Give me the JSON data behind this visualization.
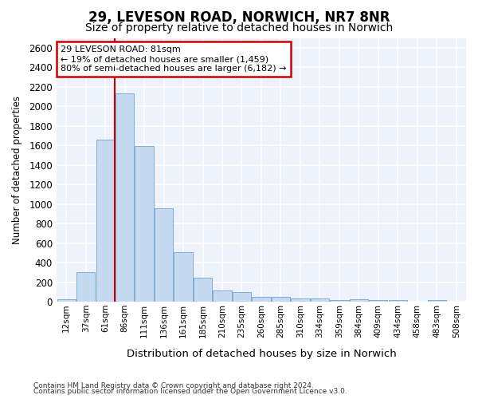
{
  "title1": "29, LEVESON ROAD, NORWICH, NR7 8NR",
  "title2": "Size of property relative to detached houses in Norwich",
  "xlabel": "Distribution of detached houses by size in Norwich",
  "ylabel": "Number of detached properties",
  "footer1": "Contains HM Land Registry data © Crown copyright and database right 2024.",
  "footer2": "Contains public sector information licensed under the Open Government Licence v3.0.",
  "annotation_title": "29 LEVESON ROAD: 81sqm",
  "annotation_line2": "← 19% of detached houses are smaller (1,459)",
  "annotation_line3": "80% of semi-detached houses are larger (6,182) →",
  "bar_color": "#c5d9f1",
  "bar_edge_color": "#7eadd4",
  "vline_color": "#cc0000",
  "vline_x": 3,
  "categories": [
    "12sqm",
    "37sqm",
    "61sqm",
    "86sqm",
    "111sqm",
    "136sqm",
    "161sqm",
    "185sqm",
    "210sqm",
    "235sqm",
    "260sqm",
    "285sqm",
    "310sqm",
    "334sqm",
    "359sqm",
    "384sqm",
    "409sqm",
    "434sqm",
    "458sqm",
    "483sqm",
    "508sqm"
  ],
  "values": [
    25,
    300,
    1660,
    2130,
    1590,
    960,
    505,
    250,
    120,
    100,
    50,
    50,
    35,
    35,
    20,
    25,
    20,
    15,
    5,
    20,
    5
  ],
  "ylim": [
    0,
    2700
  ],
  "yticks": [
    0,
    200,
    400,
    600,
    800,
    1000,
    1200,
    1400,
    1600,
    1800,
    2000,
    2200,
    2400,
    2600
  ],
  "fig_bg_color": "#ffffff",
  "plot_bg_color": "#eef2fb",
  "grid_color": "#ffffff",
  "annotation_box_color": "#ffffff",
  "annotation_box_edge": "#cc0000",
  "title1_fontsize": 12,
  "title2_fontsize": 10
}
